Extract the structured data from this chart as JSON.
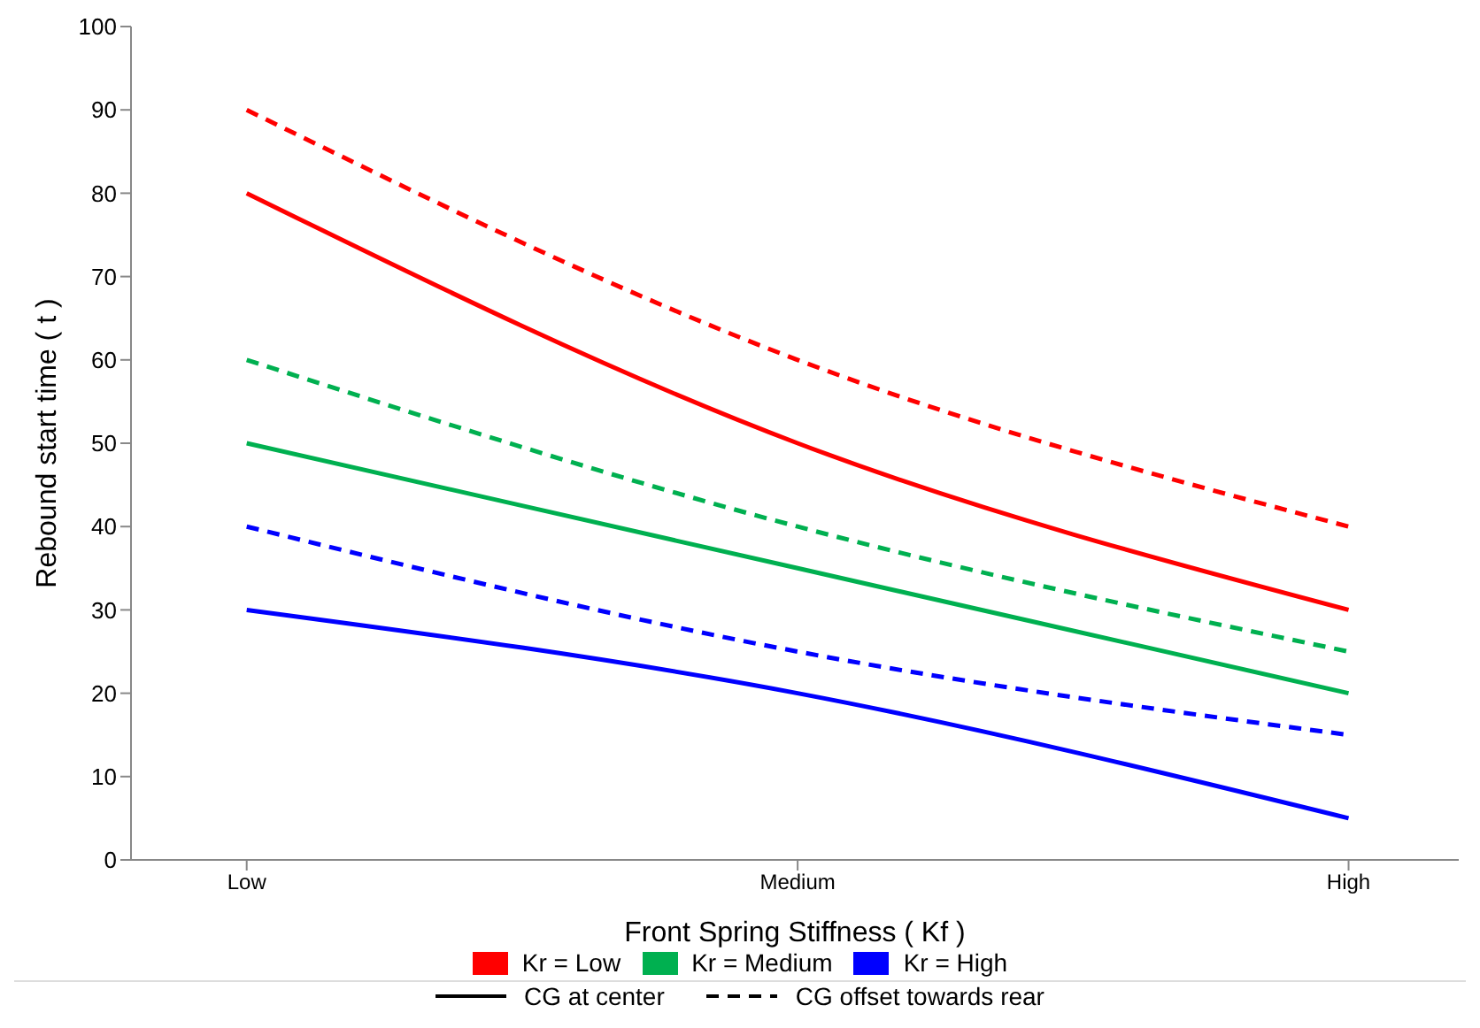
{
  "chart_data": {
    "type": "line",
    "xlabel": "Front Spring Stiffness ( Kf )",
    "ylabel": "Rebound start time ( t )",
    "categories": [
      "Low",
      "Medium",
      "High"
    ],
    "ylim": [
      0,
      100
    ],
    "yticks": [
      0,
      10,
      20,
      30,
      40,
      50,
      60,
      70,
      80,
      90,
      100
    ],
    "grid": false,
    "legend": "bottom",
    "marker": "none",
    "series": [
      {
        "name": "Kr = Low",
        "color": "#ff0000",
        "line_style": "solid",
        "values": [
          80,
          50,
          30
        ]
      },
      {
        "color": "#ff0000",
        "line_style": "dashed",
        "values": [
          90,
          60,
          40
        ]
      },
      {
        "name": "Kr = Medium",
        "color": "#00b050",
        "line_style": "solid",
        "values": [
          50,
          35,
          20
        ]
      },
      {
        "color": "#00b050",
        "line_style": "dashed",
        "values": [
          60,
          40,
          25
        ]
      },
      {
        "name": "Kr = High",
        "color": "#0000ff",
        "line_style": "solid",
        "values": [
          30,
          20,
          5
        ]
      },
      {
        "color": "#0000ff",
        "line_style": "dashed",
        "values": [
          40,
          25,
          15
        ]
      }
    ],
    "annotations": [
      "CG at center",
      "CG offset towards rear"
    ]
  }
}
